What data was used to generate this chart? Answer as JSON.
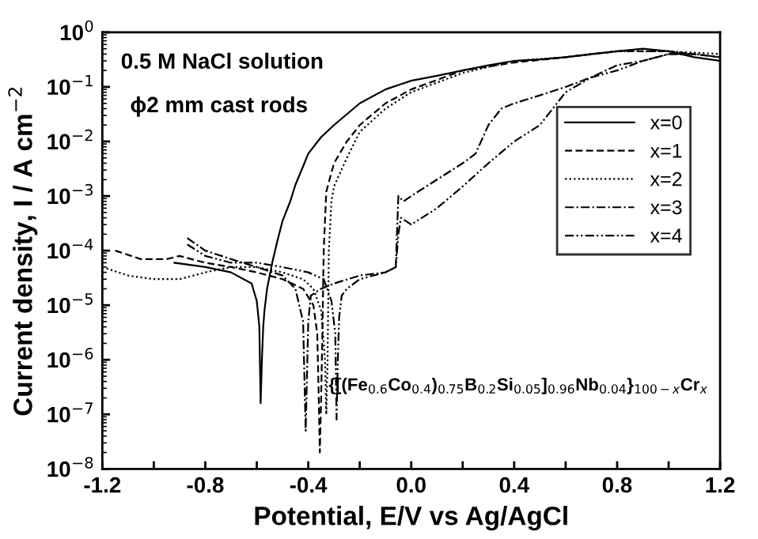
{
  "chart_data": {
    "type": "line",
    "xlabel": "Potential, E/V vs Ag/AgCl",
    "ylabel": "Current density, I / A cm$^{−2}$",
    "log": "y",
    "xlim": [
      -1.2,
      1.2
    ],
    "xticks": [
      -1.2,
      {
        "value": -1.0,
        "label": null
      },
      -0.8,
      {
        "value": -0.6,
        "label": null
      },
      -0.4,
      {
        "value": -0.2,
        "label": null
      },
      {
        "value": 0.0,
        "label": "0.0"
      },
      {
        "value": 0.2,
        "label": null
      },
      0.4,
      {
        "value": 0.6,
        "label": null
      },
      0.8,
      {
        "value": 1.0,
        "label": null
      },
      1.2
    ],
    "ylim": [
      1e-08,
      1
    ],
    "yticks": [
      {
        "value": 1e-08,
        "label": "10$^{−8}$"
      },
      {
        "value": 1e-07,
        "label": "10$^{−7}$"
      },
      {
        "value": 1e-06,
        "label": "10$^{−6}$"
      },
      {
        "value": 1e-05,
        "label": "10$^{−5}$"
      },
      {
        "value": 0.0001,
        "label": "10$^{−4}$"
      },
      {
        "value": 0.001,
        "label": "10$^{−3}$"
      },
      {
        "value": 0.01,
        "label": "10$^{−2}$"
      },
      {
        "value": 0.1,
        "label": "10$^{−1}$"
      },
      {
        "value": 1,
        "label": "10$^{0}$"
      }
    ],
    "grid": false,
    "legend": "right",
    "marker": "none",
    "annotations": [
      "0.5 M NaCl solution",
      "ϕ2 mm cast rods",
      "{[(Fe$_{0.6}$Co$_{0.4}$)$_{0.75}$B$_{0.2}$Si$_{0.05}$]$_{0.96}$Nb$_{0.04}$}$_{100−x}$Cr$_{x}$"
    ],
    "series": [
      {
        "name": "x=0",
        "color": "#000000",
        "line_style": "solid",
        "x": [
          -0.92,
          -0.8,
          -0.7,
          -0.62,
          -0.6,
          -0.59,
          -0.585,
          -0.58,
          -0.575,
          -0.57,
          -0.56,
          -0.54,
          -0.52,
          -0.5,
          -0.47,
          -0.45,
          -0.42,
          -0.4,
          -0.35,
          -0.3,
          -0.2,
          -0.1,
          0.0,
          0.1,
          0.2,
          0.3,
          0.4,
          0.5,
          0.6,
          0.7,
          0.8,
          0.9,
          1.0,
          1.1,
          1.2
        ],
        "values": [
          6e-05,
          5e-05,
          4e-05,
          2.5e-05,
          1.2e-05,
          4e-06,
          1.6e-07,
          1e-06,
          4e-06,
          8e-06,
          2e-05,
          6e-05,
          0.00015,
          0.00035,
          0.0008,
          0.0016,
          0.0035,
          0.006,
          0.012,
          0.02,
          0.05,
          0.09,
          0.13,
          0.16,
          0.2,
          0.25,
          0.3,
          0.32,
          0.35,
          0.4,
          0.45,
          0.5,
          0.45,
          0.35,
          0.3
        ]
      },
      {
        "name": "x=1",
        "color": "#000000",
        "line_style": "dashed",
        "x": [
          -1.15,
          -1.05,
          -0.95,
          -0.9,
          -0.8,
          -0.7,
          -0.6,
          -0.5,
          -0.42,
          -0.38,
          -0.365,
          -0.36,
          -0.355,
          -0.35,
          -0.345,
          -0.34,
          -0.33,
          -0.3,
          -0.25,
          -0.2,
          -0.1,
          0.0,
          0.2,
          0.4,
          0.6,
          0.8,
          1.0,
          1.2
        ],
        "values": [
          0.0001,
          7e-05,
          7e-05,
          8e-05,
          6e-05,
          5e-05,
          4e-05,
          3e-05,
          2e-05,
          1e-05,
          3e-06,
          3e-07,
          2e-08,
          2e-07,
          3e-06,
          0.0001,
          0.0012,
          0.004,
          0.01,
          0.02,
          0.05,
          0.09,
          0.2,
          0.28,
          0.35,
          0.45,
          0.45,
          0.35
        ]
      },
      {
        "name": "x=2",
        "color": "#000000",
        "line_style": "dotted",
        "x": [
          -1.2,
          -1.1,
          -1.0,
          -0.9,
          -0.8,
          -0.7,
          -0.6,
          -0.5,
          -0.42,
          -0.38,
          -0.35,
          -0.335,
          -0.33,
          -0.325,
          -0.32,
          -0.31,
          -0.3,
          -0.25,
          -0.2,
          -0.1,
          0.0,
          0.2,
          0.4,
          0.6,
          0.8,
          1.0,
          1.2
        ],
        "values": [
          5e-05,
          3.5e-05,
          3e-05,
          3e-05,
          4e-05,
          5e-05,
          5e-05,
          4e-05,
          3e-05,
          2e-05,
          8e-06,
          1e-06,
          1e-07,
          1e-06,
          0.0001,
          0.0008,
          0.0015,
          0.005,
          0.015,
          0.04,
          0.08,
          0.18,
          0.3,
          0.35,
          0.45,
          0.45,
          0.4
        ]
      },
      {
        "name": "x=3",
        "color": "#000000",
        "line_style": "dashdot",
        "x": [
          -0.87,
          -0.8,
          -0.7,
          -0.6,
          -0.5,
          -0.45,
          -0.42,
          -0.415,
          -0.41,
          -0.405,
          -0.4,
          -0.39,
          -0.35,
          -0.3,
          -0.2,
          -0.1,
          -0.06,
          -0.05,
          -0.03,
          0.0,
          0.1,
          0.2,
          0.25,
          0.3,
          0.35,
          0.4,
          0.5,
          0.6,
          0.7,
          0.8,
          0.9,
          1.0,
          1.1,
          1.2
        ],
        "values": [
          0.00017,
          0.0001,
          7e-05,
          5e-05,
          3.5e-05,
          2e-05,
          5e-06,
          5e-07,
          5e-08,
          5e-07,
          5e-06,
          1.5e-05,
          2e-05,
          2.5e-05,
          3.5e-05,
          4e-05,
          5e-05,
          0.001,
          0.0008,
          0.001,
          0.002,
          0.004,
          0.006,
          0.02,
          0.04,
          0.05,
          0.07,
          0.1,
          0.15,
          0.25,
          0.3,
          0.4,
          0.4,
          0.35
        ]
      },
      {
        "name": "x=4",
        "color": "#000000",
        "line_style": "dashdotdot",
        "x": [
          -0.87,
          -0.8,
          -0.7,
          -0.6,
          -0.5,
          -0.4,
          -0.34,
          -0.31,
          -0.295,
          -0.29,
          -0.285,
          -0.28,
          -0.27,
          -0.25,
          -0.2,
          -0.1,
          -0.06,
          -0.05,
          -0.04,
          0.0,
          0.1,
          0.2,
          0.3,
          0.4,
          0.5,
          0.55,
          0.6,
          0.7,
          0.8,
          0.9,
          1.0,
          1.1
        ],
        "values": [
          0.00013,
          8e-05,
          6e-05,
          6e-05,
          5e-05,
          4e-05,
          3e-05,
          1.2e-05,
          3e-06,
          8e-08,
          1e-06,
          6e-06,
          1.5e-05,
          2e-05,
          3e-05,
          4e-05,
          5e-05,
          0.0002,
          0.0004,
          0.0003,
          0.0006,
          0.0015,
          0.004,
          0.01,
          0.02,
          0.04,
          0.08,
          0.15,
          0.2,
          0.3,
          0.4,
          0.4
        ]
      }
    ]
  }
}
